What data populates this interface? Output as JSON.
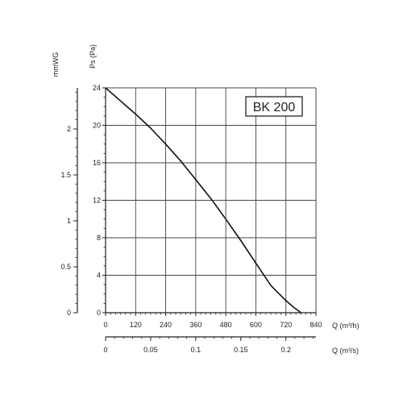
{
  "chart_data": {
    "type": "line",
    "title": "BK 200",
    "y_axis_label": "Ps (Pa)",
    "y_secondary_label": "mmWG",
    "x_axis_label": "Q (m³/h)",
    "x_secondary_label": "Q (m³/s)",
    "xlim": [
      0,
      840
    ],
    "ylim": [
      0,
      24
    ],
    "x_ticks": [
      0,
      120,
      240,
      360,
      480,
      600,
      720,
      840
    ],
    "y_ticks": [
      0,
      4,
      8,
      12,
      16,
      20,
      24
    ],
    "mmwg_ticks": [
      0,
      0.5,
      1,
      1.5,
      2
    ],
    "mmwg_ticks_labels": [
      "0",
      "0.5",
      "1",
      "1.5",
      "2"
    ],
    "m3s_ticks": [
      0,
      0.05,
      0.1,
      0.15,
      0.2
    ],
    "m3s_ticks_labels": [
      "0",
      "0.05",
      "0.1",
      "0.15",
      "0.2"
    ],
    "grid": true,
    "series": [
      {
        "x": [
          0,
          60,
          120,
          180,
          240,
          300,
          360,
          420,
          480,
          540,
          600,
          660,
          720,
          750,
          780
        ],
        "y": [
          24,
          22.6,
          21.2,
          19.7,
          18.0,
          16.2,
          14.2,
          12.2,
          10.0,
          7.7,
          5.3,
          2.9,
          1.3,
          0.6,
          0
        ]
      }
    ]
  },
  "colors": {
    "line": "#111111",
    "grid": "#444444",
    "axis": "#222222"
  }
}
